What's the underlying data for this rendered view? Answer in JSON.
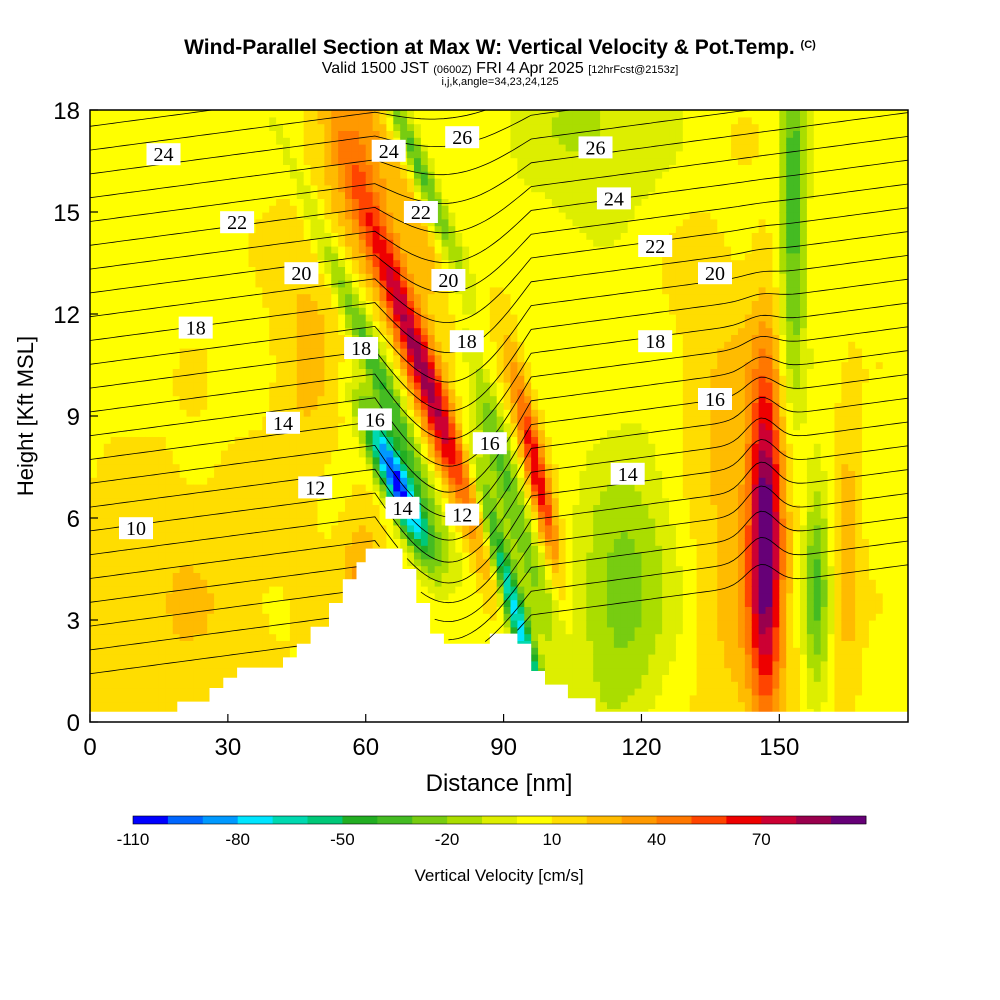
{
  "header": {
    "title": "Wind-Parallel Section at Max W: Vertical Velocity & Pot.Temp.",
    "copyright": "(C)",
    "valid": "Valid 1500 JST",
    "zulu": "(0600Z)",
    "date": "FRI 4 Apr 2025",
    "forecast": "[12hrFcst@2153z]",
    "indices": "i,j,k,angle=34,23,24,125"
  },
  "chart_data": {
    "type": "heatmap",
    "xlabel": "Distance [nm]",
    "ylabel": "Height [Kft MSL]",
    "xlim": [
      0,
      178
    ],
    "ylim": [
      0,
      18
    ],
    "xticks": [
      0,
      30,
      60,
      90,
      120,
      150
    ],
    "yticks": [
      0,
      3,
      6,
      9,
      12,
      15,
      18
    ],
    "colorbar": {
      "label": "Vertical Velocity [cm/s]",
      "min": -110,
      "max": 100,
      "step": 10,
      "tick_labels": [
        -110,
        -80,
        -50,
        -20,
        10,
        40,
        70
      ],
      "colors": [
        "#0000ff",
        "#0066ff",
        "#0099ff",
        "#00e5ff",
        "#00d9b0",
        "#00c878",
        "#22ae22",
        "#44bb22",
        "#77cc11",
        "#aadd00",
        "#ddee00",
        "#ffff00",
        "#ffdd00",
        "#ffbb00",
        "#ff9900",
        "#ff7700",
        "#ff4400",
        "#ee0000",
        "#cc0033",
        "#99004d",
        "#660077"
      ]
    },
    "terrain_kft": [
      [
        0,
        0.3
      ],
      [
        19,
        0.3
      ],
      [
        19,
        0.6
      ],
      [
        26,
        0.6
      ],
      [
        26,
        1.0
      ],
      [
        29,
        1.0
      ],
      [
        29,
        1.3
      ],
      [
        32,
        1.3
      ],
      [
        32,
        1.6
      ],
      [
        42,
        1.6
      ],
      [
        42,
        1.9
      ],
      [
        45,
        1.9
      ],
      [
        45,
        2.3
      ],
      [
        48,
        2.3
      ],
      [
        48,
        2.8
      ],
      [
        52,
        2.8
      ],
      [
        52,
        3.5
      ],
      [
        55,
        3.5
      ],
      [
        55,
        4.2
      ],
      [
        58,
        4.2
      ],
      [
        58,
        4.7
      ],
      [
        60,
        4.7
      ],
      [
        60,
        5.1
      ],
      [
        68,
        5.1
      ],
      [
        68,
        4.5
      ],
      [
        71,
        4.5
      ],
      [
        71,
        3.5
      ],
      [
        74,
        3.5
      ],
      [
        74,
        2.6
      ],
      [
        77,
        2.6
      ],
      [
        77,
        2.3
      ],
      [
        87,
        2.3
      ],
      [
        87,
        2.6
      ],
      [
        93,
        2.6
      ],
      [
        93,
        2.3
      ],
      [
        96,
        2.3
      ],
      [
        96,
        1.5
      ],
      [
        99,
        1.5
      ],
      [
        99,
        1.1
      ],
      [
        104,
        1.1
      ],
      [
        104,
        0.7
      ],
      [
        110,
        0.7
      ],
      [
        110,
        0.3
      ],
      [
        178,
        0.3
      ]
    ],
    "theta_contour_labels": [
      {
        "label": "24",
        "x": 16,
        "y": 16.7
      },
      {
        "label": "22",
        "x": 32,
        "y": 14.7
      },
      {
        "label": "20",
        "x": 46,
        "y": 13.2
      },
      {
        "label": "18",
        "x": 23,
        "y": 11.6
      },
      {
        "label": "14",
        "x": 42,
        "y": 8.8
      },
      {
        "label": "12",
        "x": 49,
        "y": 6.9
      },
      {
        "label": "10",
        "x": 10,
        "y": 5.7
      },
      {
        "label": "24",
        "x": 65,
        "y": 16.8
      },
      {
        "label": "26",
        "x": 81,
        "y": 17.2
      },
      {
        "label": "22",
        "x": 72,
        "y": 15.0
      },
      {
        "label": "20",
        "x": 78,
        "y": 13.0
      },
      {
        "label": "18",
        "x": 59,
        "y": 11.0
      },
      {
        "label": "18",
        "x": 82,
        "y": 11.2
      },
      {
        "label": "16",
        "x": 62,
        "y": 8.9
      },
      {
        "label": "16",
        "x": 87,
        "y": 8.2
      },
      {
        "label": "14",
        "x": 68,
        "y": 6.3
      },
      {
        "label": "12",
        "x": 81,
        "y": 6.1
      },
      {
        "label": "26",
        "x": 110,
        "y": 16.9
      },
      {
        "label": "24",
        "x": 114,
        "y": 15.4
      },
      {
        "label": "22",
        "x": 123,
        "y": 14.0
      },
      {
        "label": "20",
        "x": 136,
        "y": 13.2
      },
      {
        "label": "18",
        "x": 123,
        "y": 11.2
      },
      {
        "label": "16",
        "x": 136,
        "y": 9.5
      },
      {
        "label": "14",
        "x": 117,
        "y": 7.3
      }
    ],
    "w_features": [
      {
        "x": 72,
        "y": 10.5,
        "sx": 2.6,
        "sy": 3.5,
        "amp": 80,
        "tilt": -2.5
      },
      {
        "x": 77,
        "y": 13,
        "sx": 4.5,
        "sy": 4,
        "amp": 20,
        "tilt": -3
      },
      {
        "x": 147,
        "y": 5.5,
        "sx": 2.4,
        "sy": 3.6,
        "amp": 80,
        "tilt": 0
      },
      {
        "x": 144,
        "y": 4,
        "sx": 7,
        "sy": 4,
        "amp": 18,
        "tilt": 0
      },
      {
        "x": 97,
        "y": 7.5,
        "sx": 1.6,
        "sy": 2.2,
        "amp": 55,
        "tilt": -1.5
      },
      {
        "x": 67,
        "y": 7,
        "sx": 2.4,
        "sy": 1.5,
        "amp": -115,
        "tilt": -3
      },
      {
        "x": 62,
        "y": 10.5,
        "sx": 2,
        "sy": 3.5,
        "amp": -45,
        "tilt": -3
      },
      {
        "x": 71,
        "y": 16.5,
        "sx": 1.8,
        "sy": 2.5,
        "amp": -45,
        "tilt": -3
      },
      {
        "x": 93,
        "y": 3,
        "sx": 1.6,
        "sy": 2.8,
        "amp": -85,
        "tilt": -2
      },
      {
        "x": 89,
        "y": 8,
        "sx": 2.5,
        "sy": 3.5,
        "amp": -45,
        "tilt": -2
      },
      {
        "x": 59,
        "y": 4,
        "sx": 3,
        "sy": 1.5,
        "amp": 25,
        "tilt": 0
      },
      {
        "x": 58,
        "y": 16.5,
        "sx": 5,
        "sy": 2.5,
        "amp": 22,
        "tilt": 0
      },
      {
        "x": 47,
        "y": 11,
        "sx": 5,
        "sy": 3,
        "amp": 15,
        "tilt": 0
      },
      {
        "x": 153,
        "y": 15,
        "sx": 2,
        "sy": 4,
        "amp": -45,
        "tilt": 0
      },
      {
        "x": 158,
        "y": 4,
        "sx": 2,
        "sy": 2.5,
        "amp": -40,
        "tilt": 0
      },
      {
        "x": 115,
        "y": 3.5,
        "sx": 7,
        "sy": 2.5,
        "amp": -30,
        "tilt": 0
      },
      {
        "x": 110,
        "y": 17.5,
        "sx": 12,
        "sy": 2,
        "amp": -20,
        "tilt": 0
      },
      {
        "x": 135,
        "y": 9,
        "sx": 8,
        "sy": 4,
        "amp": 12,
        "tilt": 0
      },
      {
        "x": 20,
        "y": 3.5,
        "sx": 15,
        "sy": 3,
        "amp": 12,
        "tilt": 0
      },
      {
        "x": 165,
        "y": 5,
        "sx": 2,
        "sy": 3,
        "amp": 20,
        "tilt": 0
      },
      {
        "x": 124,
        "y": 6.5,
        "sx": 8,
        "sy": 3,
        "amp": -10,
        "tilt": 0
      }
    ]
  }
}
